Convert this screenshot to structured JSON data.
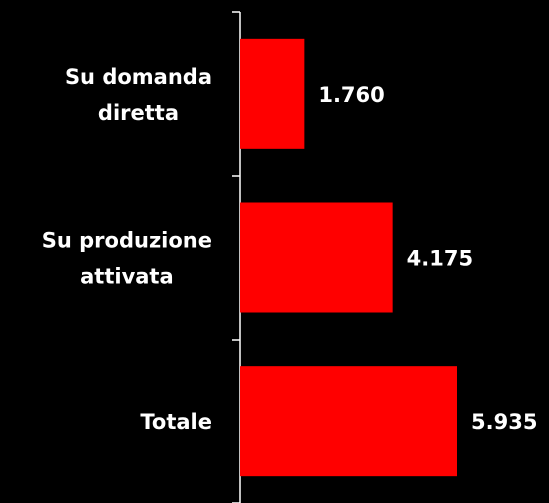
{
  "chart_data": {
    "type": "bar",
    "orientation": "horizontal",
    "categories": [
      [
        "Su domanda",
        "diretta"
      ],
      [
        "Su produzione",
        "attivata"
      ],
      [
        "Totale"
      ]
    ],
    "values": [
      1760,
      4175,
      5935
    ],
    "value_labels": [
      "1.760",
      "4.175",
      "5.935"
    ],
    "color": "#ff0000"
  }
}
